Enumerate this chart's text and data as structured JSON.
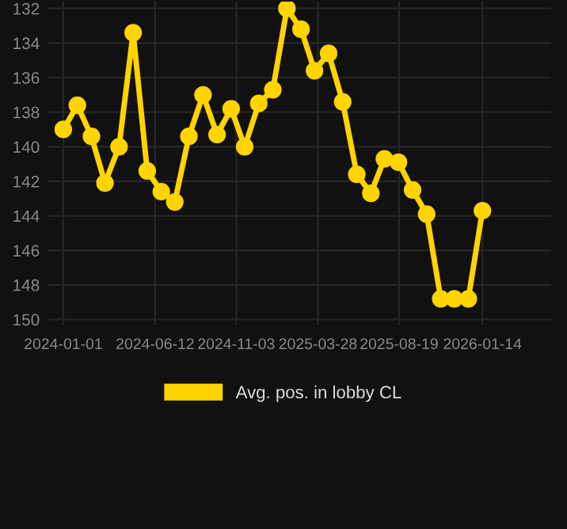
{
  "chart_data": {
    "type": "line",
    "x": [
      "2024-01-01",
      "2024-01-26",
      "2024-02-20",
      "2024-03-15",
      "2024-04-09",
      "2024-05-04",
      "2024-05-29",
      "2024-06-23",
      "2024-07-17",
      "2024-08-11",
      "2024-09-05",
      "2024-09-30",
      "2024-10-25",
      "2024-11-18",
      "2024-12-13",
      "2025-01-07",
      "2025-02-01",
      "2025-02-26",
      "2025-03-22",
      "2025-04-16",
      "2025-05-11",
      "2025-06-05",
      "2025-06-30",
      "2025-07-24",
      "2025-08-18",
      "2025-09-12",
      "2025-10-07",
      "2025-11-01",
      "2025-11-25",
      "2025-12-20",
      "2026-01-14"
    ],
    "series": [
      {
        "name": "Avg. pos. in lobby CL",
        "color": "#ffd400",
        "values": [
          139.0,
          137.6,
          139.4,
          142.1,
          140.0,
          133.4,
          141.4,
          142.6,
          143.2,
          139.4,
          137.0,
          139.3,
          137.8,
          140.0,
          137.5,
          136.7,
          132.0,
          133.2,
          135.6,
          134.6,
          137.4,
          141.6,
          142.7,
          140.7,
          140.9,
          142.5,
          143.9,
          148.8,
          148.8,
          148.8,
          143.7
        ]
      }
    ],
    "xlim": [
      "2023-12-04",
      "2026-05-16"
    ],
    "xticks": [
      "2024-01-01",
      "2024-06-12",
      "2024-11-03",
      "2025-03-28",
      "2025-08-19",
      "2026-01-14"
    ],
    "ylim": [
      150.3,
      131.6
    ],
    "yticks": [
      132,
      134,
      136,
      138,
      140,
      142,
      144,
      146,
      148,
      150
    ],
    "grid": true,
    "legend": "bottom",
    "marker": "circle",
    "line_style": "solid"
  }
}
